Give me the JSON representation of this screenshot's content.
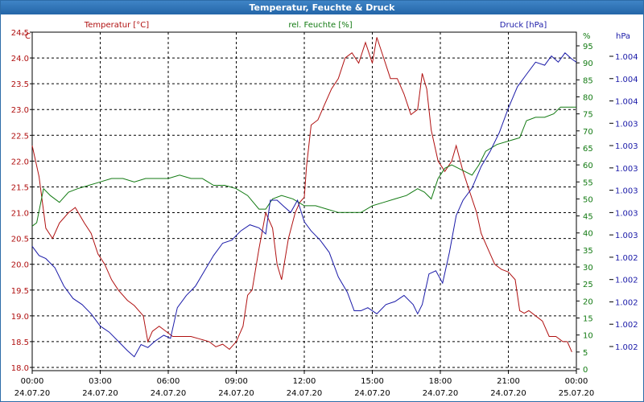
{
  "window": {
    "title": "Temperatur, Feuchte & Druck"
  },
  "chart_data": {
    "type": "line",
    "title": "Temperatur, Feuchte & Druck",
    "x_ticks": [
      {
        "time": "00:00",
        "date": "24.07.20"
      },
      {
        "time": "03:00",
        "date": "24.07.20"
      },
      {
        "time": "06:00",
        "date": "24.07.20"
      },
      {
        "time": "09:00",
        "date": "24.07.20"
      },
      {
        "time": "12:00",
        "date": "24.07.20"
      },
      {
        "time": "15:00",
        "date": "24.07.20"
      },
      {
        "time": "18:00",
        "date": "24.07.20"
      },
      {
        "time": "21:00",
        "date": "24.07.20"
      },
      {
        "time": "00:00",
        "date": "25.07.20"
      }
    ],
    "x_range_hours": [
      0,
      24
    ],
    "grid": true,
    "axes": {
      "temperature": {
        "unit": "°C",
        "side": "left",
        "range": [
          18.0,
          24.5
        ],
        "color": "#b01010",
        "ticks": [
          "18.0",
          "18.5",
          "19.0",
          "19.5",
          "20.0",
          "20.5",
          "21.0",
          "21.5",
          "22.0",
          "22.5",
          "23.0",
          "23.5",
          "24.0",
          "24.5"
        ]
      },
      "humidity": {
        "unit": "%",
        "side": "right",
        "range": [
          0,
          95
        ],
        "color": "#127a12",
        "ticks": [
          "0",
          "5",
          "10",
          "15",
          "20",
          "25",
          "30",
          "35",
          "40",
          "45",
          "50",
          "55",
          "60",
          "65",
          "70",
          "75",
          "80",
          "85",
          "90",
          "95"
        ]
      },
      "pressure": {
        "unit": "hPa",
        "side": "right",
        "color": "#1a1aa8",
        "ticks": [
          "1.002",
          "1.002",
          "1.002",
          "1.002",
          "1.002",
          "1.003",
          "1.003",
          "1.003",
          "1.003",
          "1.003",
          "1.003",
          "1.004",
          "1.004",
          "1.004"
        ]
      }
    },
    "series": [
      {
        "name": "Temperatur [°C]",
        "axis": "temperature",
        "color": "#b01010",
        "points": [
          [
            0.0,
            22.3
          ],
          [
            0.3,
            21.7
          ],
          [
            0.6,
            20.7
          ],
          [
            0.9,
            20.5
          ],
          [
            1.2,
            20.8
          ],
          [
            1.6,
            21.0
          ],
          [
            1.9,
            21.1
          ],
          [
            2.3,
            20.8
          ],
          [
            2.6,
            20.6
          ],
          [
            2.9,
            20.2
          ],
          [
            3.2,
            20.0
          ],
          [
            3.5,
            19.7
          ],
          [
            3.8,
            19.5
          ],
          [
            4.2,
            19.3
          ],
          [
            4.5,
            19.2
          ],
          [
            4.9,
            19.0
          ],
          [
            5.1,
            18.5
          ],
          [
            5.3,
            18.7
          ],
          [
            5.6,
            18.8
          ],
          [
            5.9,
            18.7
          ],
          [
            6.2,
            18.6
          ],
          [
            6.6,
            18.6
          ],
          [
            7.0,
            18.6
          ],
          [
            7.4,
            18.55
          ],
          [
            7.8,
            18.5
          ],
          [
            8.1,
            18.4
          ],
          [
            8.4,
            18.45
          ],
          [
            8.7,
            18.35
          ],
          [
            9.0,
            18.5
          ],
          [
            9.3,
            18.8
          ],
          [
            9.5,
            19.4
          ],
          [
            9.7,
            19.5
          ],
          [
            10.0,
            20.3
          ],
          [
            10.3,
            21.0
          ],
          [
            10.6,
            20.7
          ],
          [
            10.8,
            20.0
          ],
          [
            11.0,
            19.7
          ],
          [
            11.3,
            20.5
          ],
          [
            11.6,
            21.0
          ],
          [
            11.8,
            21.2
          ],
          [
            12.0,
            21.3
          ],
          [
            12.1,
            21.9
          ],
          [
            12.3,
            22.7
          ],
          [
            12.6,
            22.8
          ],
          [
            12.9,
            23.1
          ],
          [
            13.2,
            23.4
          ],
          [
            13.5,
            23.6
          ],
          [
            13.8,
            24.0
          ],
          [
            14.1,
            24.1
          ],
          [
            14.4,
            23.9
          ],
          [
            14.7,
            24.3
          ],
          [
            15.0,
            23.9
          ],
          [
            15.2,
            24.4
          ],
          [
            15.5,
            24.0
          ],
          [
            15.8,
            23.6
          ],
          [
            16.1,
            23.6
          ],
          [
            16.4,
            23.3
          ],
          [
            16.7,
            22.9
          ],
          [
            17.0,
            23.0
          ],
          [
            17.2,
            23.7
          ],
          [
            17.4,
            23.4
          ],
          [
            17.6,
            22.6
          ],
          [
            17.9,
            22.0
          ],
          [
            18.2,
            21.8
          ],
          [
            18.5,
            22.0
          ],
          [
            18.7,
            22.3
          ],
          [
            19.0,
            21.8
          ],
          [
            19.3,
            21.4
          ],
          [
            19.6,
            21.0
          ],
          [
            19.8,
            20.6
          ],
          [
            20.1,
            20.3
          ],
          [
            20.4,
            20.0
          ],
          [
            20.7,
            19.9
          ],
          [
            21.0,
            19.85
          ],
          [
            21.3,
            19.7
          ],
          [
            21.5,
            19.1
          ],
          [
            21.7,
            19.05
          ],
          [
            21.9,
            19.1
          ],
          [
            22.2,
            19.0
          ],
          [
            22.5,
            18.9
          ],
          [
            22.8,
            18.6
          ],
          [
            23.1,
            18.6
          ],
          [
            23.4,
            18.5
          ],
          [
            23.6,
            18.5
          ],
          [
            23.8,
            18.3
          ]
        ]
      },
      {
        "name": "rel. Feuchte [%]",
        "axis": "humidity",
        "color": "#127a12",
        "points": [
          [
            0.0,
            42
          ],
          [
            0.2,
            43
          ],
          [
            0.5,
            53
          ],
          [
            0.8,
            51
          ],
          [
            1.2,
            49
          ],
          [
            1.6,
            52
          ],
          [
            2.0,
            53
          ],
          [
            2.5,
            54
          ],
          [
            3.0,
            55
          ],
          [
            3.5,
            56
          ],
          [
            4.0,
            56
          ],
          [
            4.5,
            55
          ],
          [
            5.0,
            56
          ],
          [
            5.5,
            56
          ],
          [
            6.0,
            56
          ],
          [
            6.5,
            57
          ],
          [
            7.0,
            56
          ],
          [
            7.5,
            56
          ],
          [
            8.0,
            54
          ],
          [
            8.5,
            54
          ],
          [
            9.0,
            53
          ],
          [
            9.5,
            51
          ],
          [
            10.0,
            47
          ],
          [
            10.3,
            47
          ],
          [
            10.6,
            50
          ],
          [
            11.0,
            51
          ],
          [
            11.5,
            50
          ],
          [
            12.0,
            48
          ],
          [
            12.5,
            48
          ],
          [
            13.0,
            47
          ],
          [
            13.5,
            46
          ],
          [
            14.0,
            46
          ],
          [
            14.5,
            46
          ],
          [
            15.0,
            48
          ],
          [
            15.5,
            49
          ],
          [
            16.0,
            50
          ],
          [
            16.5,
            51
          ],
          [
            17.0,
            53
          ],
          [
            17.3,
            52
          ],
          [
            17.6,
            50
          ],
          [
            17.9,
            56
          ],
          [
            18.2,
            59
          ],
          [
            18.5,
            60
          ],
          [
            18.8,
            59
          ],
          [
            19.1,
            58
          ],
          [
            19.4,
            57
          ],
          [
            19.7,
            60
          ],
          [
            20.0,
            64
          ],
          [
            20.5,
            66
          ],
          [
            21.0,
            67
          ],
          [
            21.5,
            68
          ],
          [
            21.8,
            73
          ],
          [
            22.2,
            74
          ],
          [
            22.6,
            74
          ],
          [
            23.0,
            75
          ],
          [
            23.3,
            77
          ],
          [
            23.6,
            77
          ],
          [
            24.0,
            77
          ]
        ]
      },
      {
        "name": "Druck [hPa]",
        "axis": "pressure",
        "color": "#1a1aa8",
        "points": [
          [
            0.0,
            40
          ],
          [
            0.3,
            37
          ],
          [
            0.6,
            36
          ],
          [
            1.0,
            33
          ],
          [
            1.4,
            27
          ],
          [
            1.8,
            23
          ],
          [
            2.2,
            21
          ],
          [
            2.6,
            18
          ],
          [
            3.0,
            14
          ],
          [
            3.4,
            12
          ],
          [
            3.8,
            9
          ],
          [
            4.2,
            6
          ],
          [
            4.5,
            4
          ],
          [
            4.8,
            8
          ],
          [
            5.1,
            7
          ],
          [
            5.4,
            9
          ],
          [
            5.8,
            11
          ],
          [
            6.1,
            10
          ],
          [
            6.4,
            20
          ],
          [
            6.8,
            24
          ],
          [
            7.2,
            27
          ],
          [
            7.6,
            32
          ],
          [
            8.0,
            37
          ],
          [
            8.4,
            41
          ],
          [
            8.8,
            42
          ],
          [
            9.2,
            45
          ],
          [
            9.6,
            47
          ],
          [
            10.0,
            46
          ],
          [
            10.3,
            44
          ],
          [
            10.5,
            55
          ],
          [
            10.8,
            55
          ],
          [
            11.1,
            53
          ],
          [
            11.4,
            51
          ],
          [
            11.7,
            55
          ],
          [
            12.0,
            48
          ],
          [
            12.3,
            45
          ],
          [
            12.7,
            42
          ],
          [
            13.1,
            38
          ],
          [
            13.5,
            30
          ],
          [
            13.9,
            25
          ],
          [
            14.2,
            19
          ],
          [
            14.5,
            19
          ],
          [
            14.8,
            20
          ],
          [
            15.2,
            18
          ],
          [
            15.6,
            21
          ],
          [
            16.0,
            22
          ],
          [
            16.4,
            24
          ],
          [
            16.8,
            21
          ],
          [
            17.0,
            18
          ],
          [
            17.2,
            21
          ],
          [
            17.5,
            31
          ],
          [
            17.8,
            32
          ],
          [
            18.1,
            28
          ],
          [
            18.4,
            38
          ],
          [
            18.7,
            50
          ],
          [
            19.0,
            55
          ],
          [
            19.4,
            59
          ],
          [
            19.8,
            66
          ],
          [
            20.2,
            71
          ],
          [
            20.6,
            77
          ],
          [
            21.0,
            85
          ],
          [
            21.4,
            92
          ],
          [
            21.8,
            96
          ],
          [
            22.2,
            100
          ],
          [
            22.6,
            99
          ],
          [
            22.9,
            102
          ],
          [
            23.2,
            100
          ],
          [
            23.5,
            103
          ],
          [
            23.8,
            101
          ],
          [
            24.0,
            100
          ]
        ]
      }
    ]
  }
}
